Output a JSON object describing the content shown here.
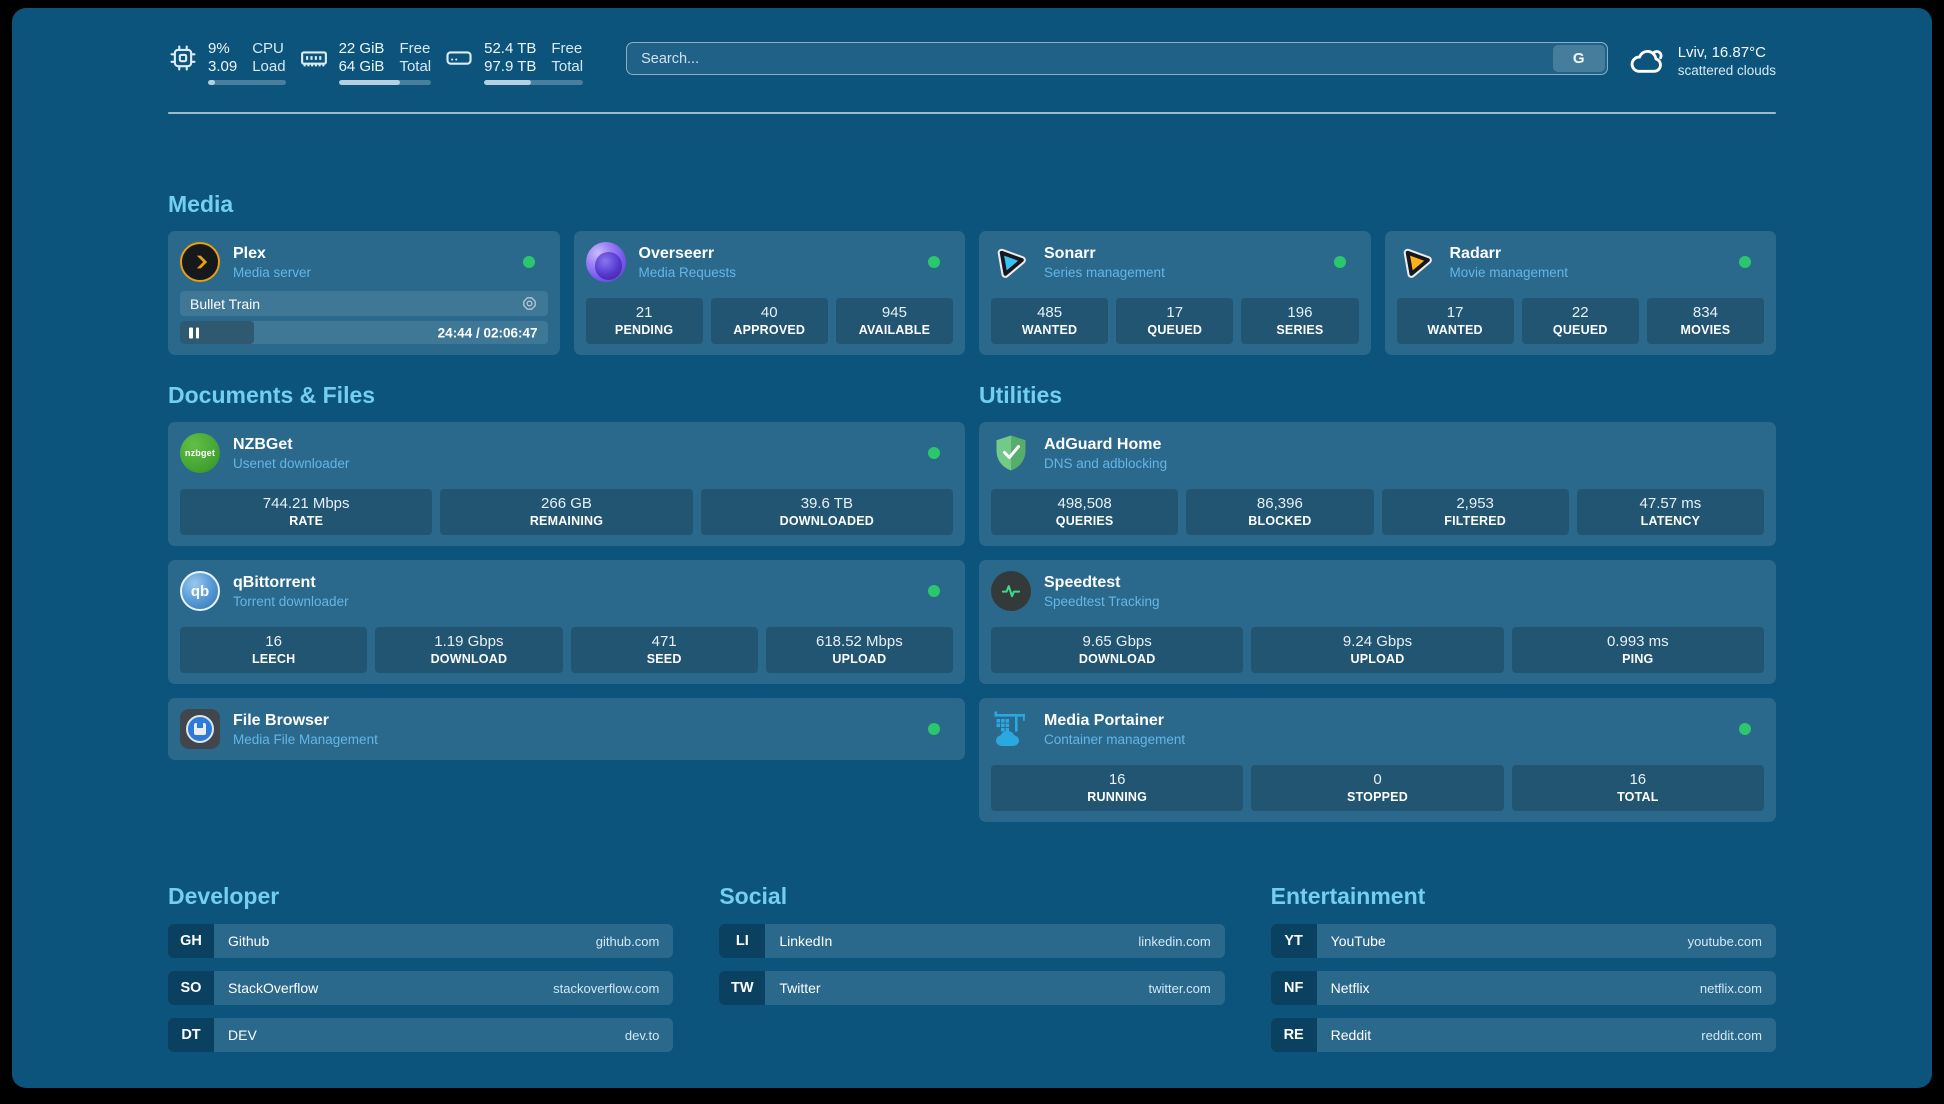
{
  "topbar": {
    "resources": [
      {
        "kind": "cpu",
        "values": [
          "9%",
          "3.09"
        ],
        "labels": [
          "CPU",
          "Load"
        ],
        "percent": 9
      },
      {
        "kind": "memory",
        "values": [
          "22 GiB",
          "64 GiB"
        ],
        "labels": [
          "Free",
          "Total"
        ],
        "percent": 66
      },
      {
        "kind": "disk",
        "values": [
          "52.4 TB",
          "97.9 TB"
        ],
        "labels": [
          "Free",
          "Total"
        ],
        "percent": 47
      }
    ],
    "search": {
      "placeholder": "Search...",
      "engine_button": "G"
    },
    "weather": {
      "location": "Lviv, 16.87°C",
      "condition": "scattered clouds"
    }
  },
  "sections": {
    "media": {
      "heading": "Media",
      "plex": {
        "title": "Plex",
        "subtitle": "Media server",
        "now_playing": "Bullet Train",
        "time": "24:44 / 02:06:47",
        "progress_percent": 20
      },
      "overseerr": {
        "title": "Overseerr",
        "subtitle": "Media Requests",
        "stats": [
          {
            "value": "21",
            "label": "PENDING"
          },
          {
            "value": "40",
            "label": "APPROVED"
          },
          {
            "value": "945",
            "label": "AVAILABLE"
          }
        ]
      },
      "sonarr": {
        "title": "Sonarr",
        "subtitle": "Series management",
        "stats": [
          {
            "value": "485",
            "label": "WANTED"
          },
          {
            "value": "17",
            "label": "QUEUED"
          },
          {
            "value": "196",
            "label": "SERIES"
          }
        ]
      },
      "radarr": {
        "title": "Radarr",
        "subtitle": "Movie management",
        "stats": [
          {
            "value": "17",
            "label": "WANTED"
          },
          {
            "value": "22",
            "label": "QUEUED"
          },
          {
            "value": "834",
            "label": "MOVIES"
          }
        ]
      }
    },
    "documents": {
      "heading": "Documents & Files",
      "nzbget": {
        "title": "NZBGet",
        "subtitle": "Usenet downloader",
        "stats": [
          {
            "value": "744.21 Mbps",
            "label": "RATE"
          },
          {
            "value": "266 GB",
            "label": "REMAINING"
          },
          {
            "value": "39.6 TB",
            "label": "DOWNLOADED"
          }
        ]
      },
      "qbittorrent": {
        "title": "qBittorrent",
        "subtitle": "Torrent downloader",
        "stats": [
          {
            "value": "16",
            "label": "LEECH"
          },
          {
            "value": "1.19 Gbps",
            "label": "DOWNLOAD"
          },
          {
            "value": "471",
            "label": "SEED"
          },
          {
            "value": "618.52 Mbps",
            "label": "UPLOAD"
          }
        ]
      },
      "filebrowser": {
        "title": "File Browser",
        "subtitle": "Media File Management"
      }
    },
    "utilities": {
      "heading": "Utilities",
      "adguard": {
        "title": "AdGuard Home",
        "subtitle": "DNS and adblocking",
        "stats": [
          {
            "value": "498,508",
            "label": "QUERIES"
          },
          {
            "value": "86,396",
            "label": "BLOCKED"
          },
          {
            "value": "2,953",
            "label": "FILTERED"
          },
          {
            "value": "47.57 ms",
            "label": "LATENCY"
          }
        ]
      },
      "speedtest": {
        "title": "Speedtest",
        "subtitle": "Speedtest Tracking",
        "stats": [
          {
            "value": "9.65 Gbps",
            "label": "DOWNLOAD"
          },
          {
            "value": "9.24 Gbps",
            "label": "UPLOAD"
          },
          {
            "value": "0.993 ms",
            "label": "PING"
          }
        ]
      },
      "portainer": {
        "title": "Media Portainer",
        "subtitle": "Container management",
        "stats": [
          {
            "value": "16",
            "label": "RUNNING"
          },
          {
            "value": "0",
            "label": "STOPPED"
          },
          {
            "value": "16",
            "label": "TOTAL"
          }
        ]
      }
    },
    "bookmarks": {
      "groups": [
        {
          "heading": "Developer",
          "items": [
            {
              "abbr": "GH",
              "name": "Github",
              "url": "github.com"
            },
            {
              "abbr": "SO",
              "name": "StackOverflow",
              "url": "stackoverflow.com"
            },
            {
              "abbr": "DT",
              "name": "DEV",
              "url": "dev.to"
            }
          ]
        },
        {
          "heading": "Social",
          "items": [
            {
              "abbr": "LI",
              "name": "LinkedIn",
              "url": "linkedin.com"
            },
            {
              "abbr": "TW",
              "name": "Twitter",
              "url": "twitter.com"
            }
          ]
        },
        {
          "heading": "Entertainment",
          "items": [
            {
              "abbr": "YT",
              "name": "YouTube",
              "url": "youtube.com"
            },
            {
              "abbr": "NF",
              "name": "Netflix",
              "url": "netflix.com"
            },
            {
              "abbr": "RE",
              "name": "Reddit",
              "url": "reddit.com"
            }
          ]
        }
      ]
    }
  },
  "icons": {
    "nzbget_text": "nzbget",
    "qbittorrent_text": "qb"
  },
  "colors": {
    "status_ok": "#2bc76d",
    "heading_accent": "#74cef2",
    "background": "#0d547d"
  }
}
